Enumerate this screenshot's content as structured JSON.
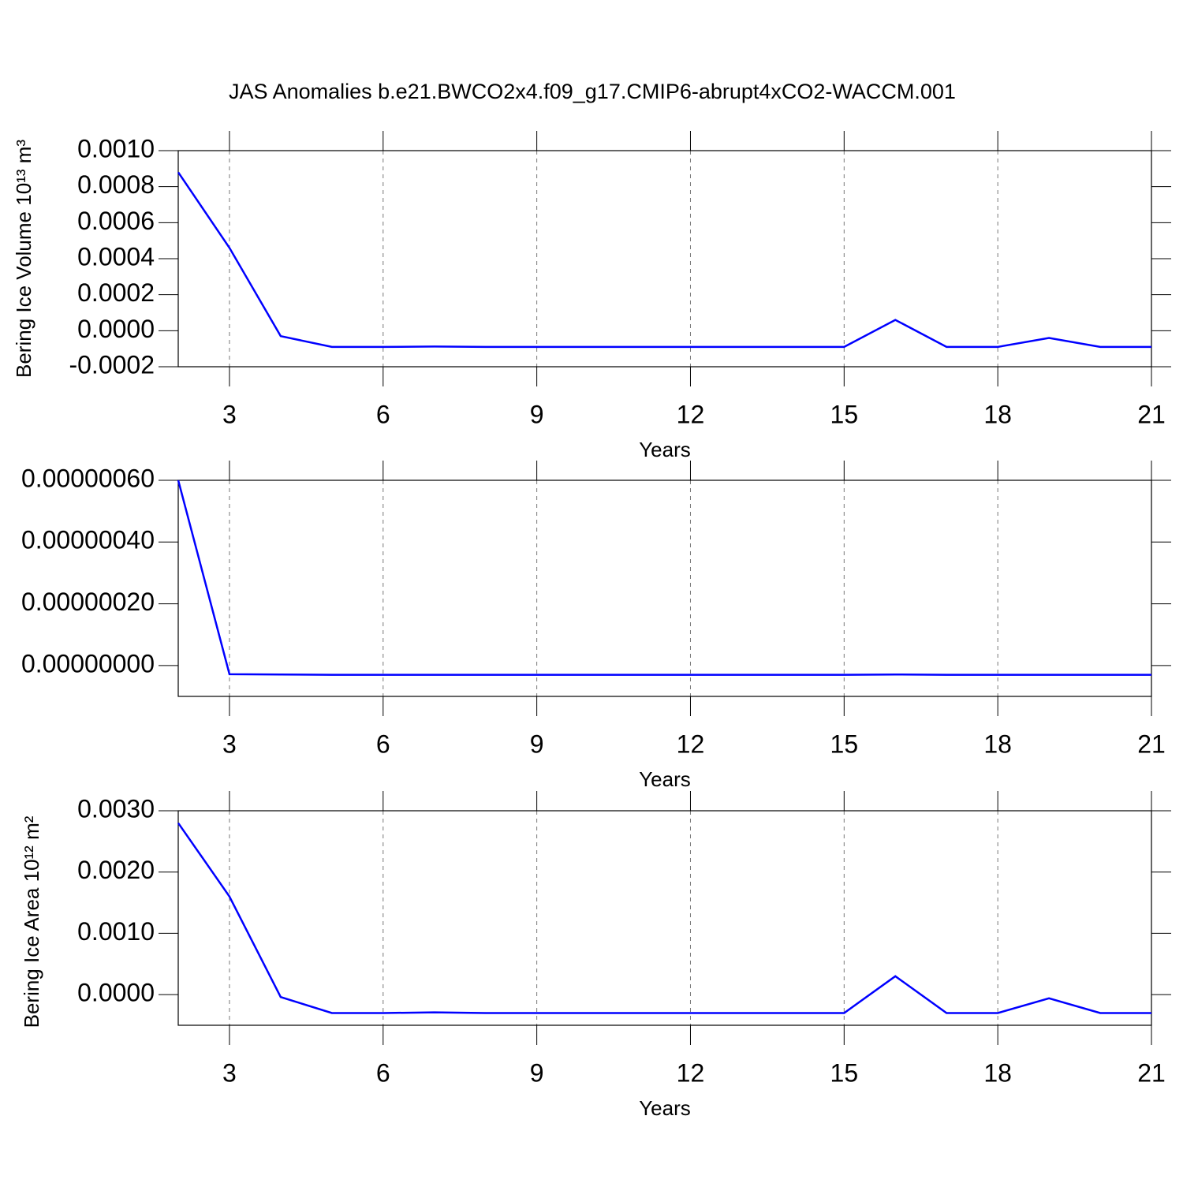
{
  "chart_data": [
    {
      "type": "line",
      "title": "JAS Anomalies b.e21.BWCO2x4.f09_g17.CMIP6-abrupt4xCO2-WACCM.001",
      "ylabel": "Bering Ice Volume 10¹³ m³",
      "xlabel": "Years",
      "x": [
        2,
        3,
        4,
        5,
        6,
        7,
        8,
        9,
        10,
        11,
        12,
        13,
        14,
        15,
        16,
        17,
        18,
        19,
        20,
        21
      ],
      "series": [
        {
          "color": "#0000ff",
          "values": [
            0.00088,
            0.00046,
            -3e-05,
            -9e-05,
            -9e-05,
            -8.8e-05,
            -9e-05,
            -9e-05,
            -9e-05,
            -9e-05,
            -9e-05,
            -9e-05,
            -9e-05,
            -9e-05,
            6e-05,
            -9e-05,
            -9e-05,
            -4e-05,
            -9e-05,
            -9e-05
          ]
        }
      ],
      "xlim": [
        2,
        21
      ],
      "xticks": [
        3,
        6,
        9,
        12,
        15,
        18,
        21
      ],
      "ylim": [
        -0.0002,
        0.001
      ],
      "yticks": [
        {
          "value": -0.0002,
          "label": "-0.0002"
        },
        {
          "value": 0,
          "label": "0.0000"
        },
        {
          "value": 0.0002,
          "label": "0.0002"
        },
        {
          "value": 0.0004,
          "label": "0.0004"
        },
        {
          "value": 0.0006,
          "label": "0.0006"
        },
        {
          "value": 0.0008,
          "label": "0.0008"
        },
        {
          "value": 0.001,
          "label": "0.0010"
        }
      ],
      "grid": true
    },
    {
      "type": "line",
      "xlabel": "Years",
      "x": [
        2,
        3,
        4,
        5,
        6,
        7,
        8,
        9,
        10,
        11,
        12,
        13,
        14,
        15,
        16,
        17,
        18,
        19,
        20,
        21
      ],
      "series": [
        {
          "color": "#0000ff",
          "values": [
            6e-07,
            -2.8e-08,
            -2.9e-08,
            -3e-08,
            -3e-08,
            -3e-08,
            -3e-08,
            -3e-08,
            -3e-08,
            -3e-08,
            -3e-08,
            -3e-08,
            -3e-08,
            -3e-08,
            -2.9e-08,
            -3e-08,
            -3e-08,
            -3e-08,
            -3e-08,
            -3e-08
          ]
        }
      ],
      "xlim": [
        2,
        21
      ],
      "xticks": [
        3,
        6,
        9,
        12,
        15,
        18,
        21
      ],
      "ylim": [
        -1e-07,
        6e-07
      ],
      "yticks": [
        {
          "value": 0,
          "label": "0.00000000"
        },
        {
          "value": 2e-07,
          "label": "0.00000020"
        },
        {
          "value": 4e-07,
          "label": "0.00000040"
        },
        {
          "value": 6e-07,
          "label": "0.00000060"
        }
      ],
      "grid": true
    },
    {
      "type": "line",
      "ylabel": "Bering Ice Area 10¹² m²",
      "xlabel": "Years",
      "x": [
        2,
        3,
        4,
        5,
        6,
        7,
        8,
        9,
        10,
        11,
        12,
        13,
        14,
        15,
        16,
        17,
        18,
        19,
        20,
        21
      ],
      "series": [
        {
          "color": "#0000ff",
          "values": [
            0.0028,
            0.0016,
            -4e-05,
            -0.0003,
            -0.0003,
            -0.00029,
            -0.0003,
            -0.0003,
            -0.0003,
            -0.0003,
            -0.0003,
            -0.0003,
            -0.0003,
            -0.0003,
            0.0003,
            -0.0003,
            -0.0003,
            -6e-05,
            -0.0003,
            -0.0003
          ]
        }
      ],
      "xlim": [
        2,
        21
      ],
      "xticks": [
        3,
        6,
        9,
        12,
        15,
        18,
        21
      ],
      "ylim": [
        -0.0005,
        0.003
      ],
      "yticks": [
        {
          "value": 0,
          "label": "0.0000"
        },
        {
          "value": 0.001,
          "label": "0.0010"
        },
        {
          "value": 0.002,
          "label": "0.0020"
        },
        {
          "value": 0.003,
          "label": "0.0030"
        }
      ],
      "grid": true
    }
  ]
}
